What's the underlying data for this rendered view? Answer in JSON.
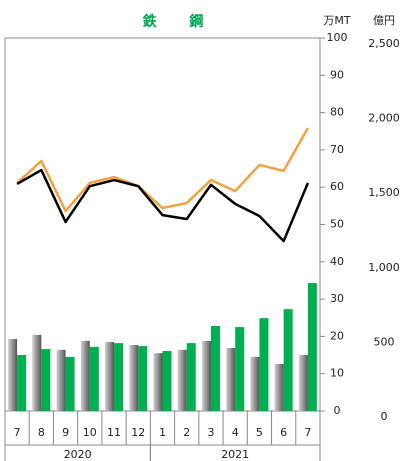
{
  "chart_data": {
    "type": "bar_line",
    "title": "鉄 鋼",
    "title_color": "#00a651",
    "y_unit": "万MT",
    "y2_unit": "億円",
    "categories": [
      "7",
      "8",
      "9",
      "10",
      "11",
      "12",
      "1",
      "2",
      "3",
      "4",
      "5",
      "6",
      "7"
    ],
    "year_labels": [
      "2020",
      null,
      null,
      null,
      null,
      null,
      "2021",
      null,
      null,
      null,
      null,
      null,
      null
    ],
    "ylim": [
      0,
      100
    ],
    "yticks": [
      0,
      10,
      20,
      30,
      40,
      50,
      60,
      70,
      80,
      90,
      100
    ],
    "y2lim": [
      0,
      2500
    ],
    "y2ticks": [
      0,
      500,
      {
        "value": 1000,
        "label": "1,000"
      },
      {
        "value": 1500,
        "label": "1,500"
      },
      {
        "value": 2000,
        "label": "2,000"
      },
      {
        "value": 2500,
        "label": "2,500"
      }
    ],
    "series": [
      {
        "kind": "bar",
        "color": "#808080",
        "values": [
          19.3,
          20.4,
          16.4,
          18.8,
          18.5,
          17.7,
          15.5,
          16.4,
          18.8,
          16.9,
          14.5,
          12.6,
          15.0
        ]
      },
      {
        "kind": "bar",
        "color": "#00b050",
        "values": [
          15.0,
          16.6,
          14.5,
          17.2,
          18.2,
          17.4,
          16.1,
          18.2,
          22.8,
          22.5,
          24.9,
          27.3,
          34.3
        ]
      },
      {
        "kind": "line",
        "axis": "y2",
        "color": "#f4a040",
        "values": [
          1528,
          1676,
          1340,
          1528,
          1568,
          1508,
          1360,
          1394,
          1548,
          1474,
          1649,
          1609,
          1897
        ]
      },
      {
        "kind": "line",
        "axis": "y2",
        "color": "#000000",
        "values": [
          1522,
          1615,
          1267,
          1507,
          1548,
          1507,
          1313,
          1287,
          1516,
          1388,
          1307,
          1139,
          1528
        ]
      }
    ]
  }
}
